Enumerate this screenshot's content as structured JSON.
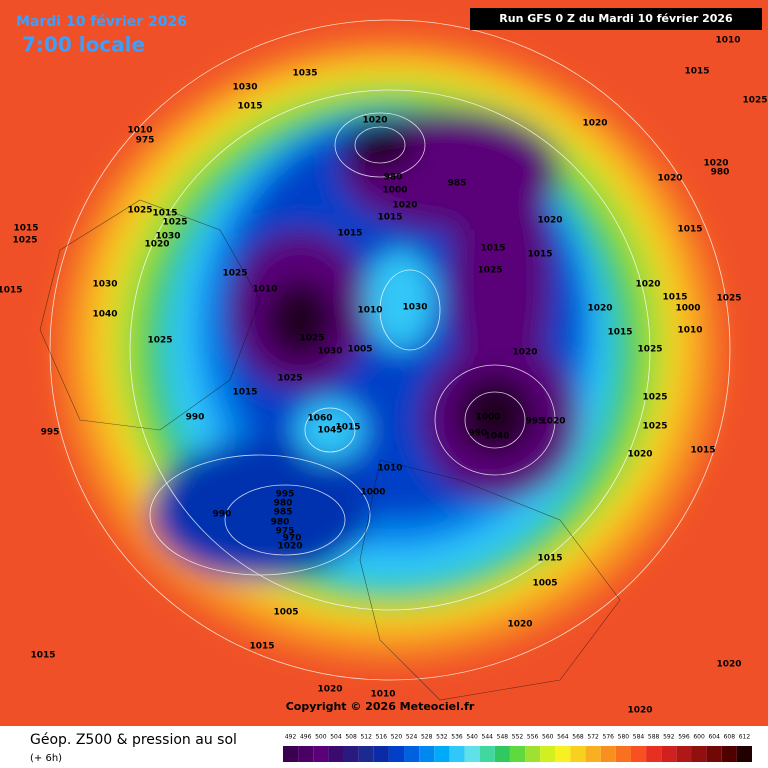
{
  "header": {
    "date": "Mardi 10 février 2026",
    "time": "7:00 locale",
    "run": "Run GFS 0 Z du Mardi 10 février 2026"
  },
  "footer": {
    "title": "Géop. Z500 & pression au sol",
    "lead": "(+ 6h)",
    "copyright": "Copyright © 2026 Meteociel.fr"
  },
  "colorbar": {
    "values": [
      492,
      496,
      500,
      504,
      508,
      512,
      516,
      520,
      524,
      528,
      532,
      536,
      540,
      544,
      548,
      552,
      556,
      560,
      564,
      568,
      572,
      576,
      580,
      584,
      588,
      592,
      596,
      600,
      604,
      608,
      612
    ],
    "colors": [
      "#3c0050",
      "#4a0064",
      "#5a0078",
      "#3a0a6e",
      "#2a1a80",
      "#1a2a90",
      "#0a2aa8",
      "#0040c8",
      "#0060e0",
      "#0088f0",
      "#00aaf8",
      "#30c8f8",
      "#60e0e8",
      "#40d8a0",
      "#30c860",
      "#60d840",
      "#a0e030",
      "#d0f020",
      "#f8f020",
      "#f8d020",
      "#f8b020",
      "#f89020",
      "#f87020",
      "#f85020",
      "#e83020",
      "#d02020",
      "#b01818",
      "#901010",
      "#700808",
      "#500000",
      "#200000"
    ]
  },
  "labels": [
    "1010",
    "1015",
    "1025",
    "1035",
    "1030",
    "1015",
    "1010",
    "975",
    "1020",
    "1020",
    "1020",
    "980",
    "980",
    "985",
    "1000",
    "1020",
    "1020",
    "1025",
    "1015",
    "1015",
    "1025",
    "1025",
    "1030",
    "1020",
    "1015",
    "1015",
    "1020",
    "1015",
    "1015",
    "1015",
    "1025",
    "1025",
    "1020",
    "1015",
    "1030",
    "1010",
    "1040",
    "1030",
    "1010",
    "1020",
    "1015",
    "1000",
    "1025",
    "1025",
    "1015",
    "1010",
    "1025",
    "1030",
    "1005",
    "1020",
    "1025",
    "1025",
    "1015",
    "1025",
    "990",
    "1000",
    "995",
    "1020",
    "1025",
    "995",
    "990",
    "1040",
    "1060",
    "1045",
    "1015",
    "1020",
    "1015",
    "1010",
    "1000",
    "995",
    "980",
    "990",
    "985",
    "980",
    "975",
    "970",
    "1020",
    "1015",
    "1005",
    "1005",
    "1020",
    "1015",
    "1015",
    "1020",
    "1020",
    "1010",
    "1020"
  ]
}
